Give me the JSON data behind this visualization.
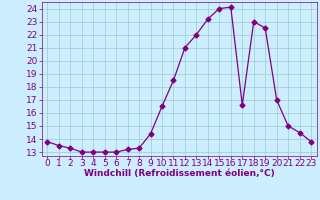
{
  "x": [
    0,
    1,
    2,
    3,
    4,
    5,
    6,
    7,
    8,
    9,
    10,
    11,
    12,
    13,
    14,
    15,
    16,
    17,
    18,
    19,
    20,
    21,
    22,
    23
  ],
  "y": [
    13.8,
    13.5,
    13.3,
    13.0,
    13.0,
    13.0,
    13.0,
    13.2,
    13.3,
    14.4,
    16.5,
    18.5,
    21.0,
    22.0,
    23.2,
    24.0,
    24.1,
    16.6,
    23.0,
    22.5,
    17.0,
    15.0,
    14.5,
    13.8
  ],
  "line_color": "#800080",
  "marker": "D",
  "marker_size": 2.5,
  "bg_color": "#cceeff",
  "grid_color": "#99cccc",
  "xlabel": "Windchill (Refroidissement éolien,°C)",
  "xlabel_color": "#800080",
  "tick_color": "#800080",
  "ylim": [
    12.7,
    24.5
  ],
  "xlim": [
    -0.5,
    23.5
  ],
  "yticks": [
    13,
    14,
    15,
    16,
    17,
    18,
    19,
    20,
    21,
    22,
    23,
    24
  ],
  "xticks": [
    0,
    1,
    2,
    3,
    4,
    5,
    6,
    7,
    8,
    9,
    10,
    11,
    12,
    13,
    14,
    15,
    16,
    17,
    18,
    19,
    20,
    21,
    22,
    23
  ],
  "font_size": 6.5,
  "title": ""
}
